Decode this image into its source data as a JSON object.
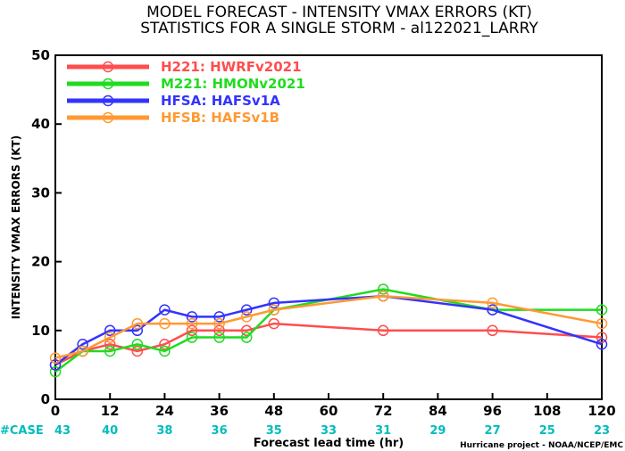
{
  "chart_data": {
    "type": "line",
    "title_line1": "MODEL FORECAST - INTENSITY VMAX ERRORS (KT)",
    "title_line2": "STATISTICS FOR A SINGLE STORM - al122021_LARRY",
    "xlabel": "Forecast lead time (hr)",
    "ylabel": "INTENSITY VMAX ERRORS (KT)",
    "xlim": [
      0,
      120
    ],
    "ylim": [
      0,
      50
    ],
    "x_ticks": [
      0,
      12,
      24,
      36,
      48,
      60,
      72,
      84,
      96,
      108,
      120
    ],
    "y_ticks": [
      0,
      10,
      20,
      30,
      40,
      50
    ],
    "legend_position": "top-left",
    "series": [
      {
        "name": "H221: HWRFv2021",
        "color": "#ff4d4d",
        "points": [
          [
            0,
            5
          ],
          [
            6,
            7
          ],
          [
            12,
            8
          ],
          [
            18,
            7
          ],
          [
            24,
            8
          ],
          [
            30,
            10
          ],
          [
            36,
            10
          ],
          [
            42,
            10
          ],
          [
            48,
            11
          ],
          [
            72,
            10
          ],
          [
            96,
            10
          ],
          [
            120,
            9
          ]
        ]
      },
      {
        "name": "M221: HMONv2021",
        "color": "#1fdc1f",
        "points": [
          [
            0,
            4
          ],
          [
            6,
            7
          ],
          [
            12,
            7
          ],
          [
            18,
            8
          ],
          [
            24,
            7
          ],
          [
            30,
            9
          ],
          [
            36,
            9
          ],
          [
            42,
            9
          ],
          [
            48,
            13
          ],
          [
            72,
            16
          ],
          [
            96,
            13
          ],
          [
            120,
            13
          ]
        ]
      },
      {
        "name": "HFSA: HAFSv1A",
        "color": "#3333ff",
        "points": [
          [
            0,
            5
          ],
          [
            6,
            8
          ],
          [
            12,
            10
          ],
          [
            18,
            10
          ],
          [
            24,
            13
          ],
          [
            30,
            12
          ],
          [
            36,
            12
          ],
          [
            42,
            13
          ],
          [
            48,
            14
          ],
          [
            72,
            15
          ],
          [
            96,
            13
          ],
          [
            120,
            8
          ]
        ]
      },
      {
        "name": "HFSB: HAFSv1B",
        "color": "#ff9933",
        "points": [
          [
            0,
            6
          ],
          [
            6,
            7
          ],
          [
            12,
            9
          ],
          [
            18,
            11
          ],
          [
            24,
            11
          ],
          [
            30,
            11
          ],
          [
            36,
            11
          ],
          [
            42,
            12
          ],
          [
            48,
            13
          ],
          [
            72,
            15
          ],
          [
            96,
            14
          ],
          [
            120,
            11
          ]
        ]
      }
    ],
    "cases": {
      "label": "#CASE",
      "color": "#00bcbc",
      "hours": [
        0,
        12,
        24,
        36,
        48,
        60,
        72,
        84,
        96,
        108,
        120
      ],
      "values": [
        43,
        40,
        38,
        36,
        35,
        33,
        31,
        29,
        27,
        25,
        23
      ]
    },
    "credit": "Hurricane project - NOAA/NCEP/EMC"
  }
}
